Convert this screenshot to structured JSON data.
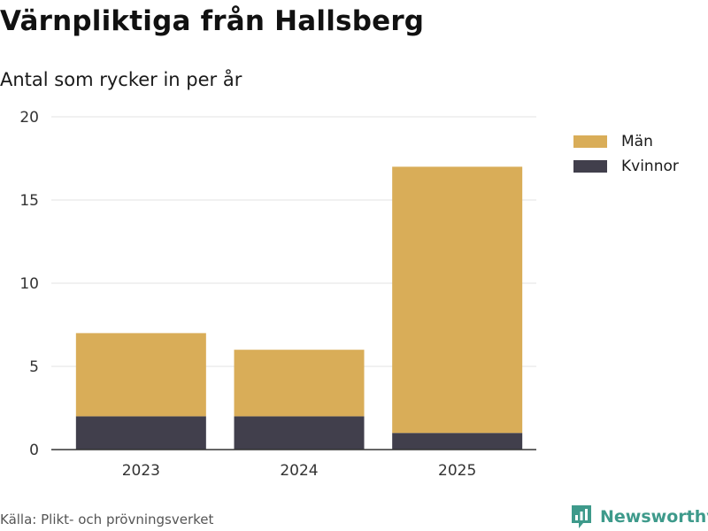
{
  "title": "Värnpliktiga från Hallsberg",
  "subtitle": "Antal som rycker in per år",
  "source": "Källa: Plikt- och prövningsverket",
  "brand": {
    "name": "Newsworthy",
    "icon": "newsworthy-logo-icon",
    "color": "#3e9a8b"
  },
  "colors": {
    "man": "#d9ad58",
    "kvinnor": "#413f4c",
    "grid": "#e3e3e3",
    "axis": "#333333"
  },
  "chart_data": {
    "type": "bar",
    "stacked": true,
    "title": "Värnpliktiga från Hallsberg",
    "subtitle": "Antal som rycker in per år",
    "xlabel": "",
    "ylabel": "",
    "categories": [
      "2023",
      "2024",
      "2025"
    ],
    "series": [
      {
        "name": "Kvinnor",
        "values": [
          2,
          2,
          1
        ]
      },
      {
        "name": "Män",
        "values": [
          5,
          4,
          16
        ]
      }
    ],
    "ylim": [
      0,
      20
    ],
    "yticks": [
      0,
      5,
      10,
      15,
      20
    ],
    "grid": true,
    "legend_position": "top-right"
  },
  "legend": [
    {
      "label": "Män",
      "color": "#d9ad58"
    },
    {
      "label": "Kvinnor",
      "color": "#413f4c"
    }
  ]
}
